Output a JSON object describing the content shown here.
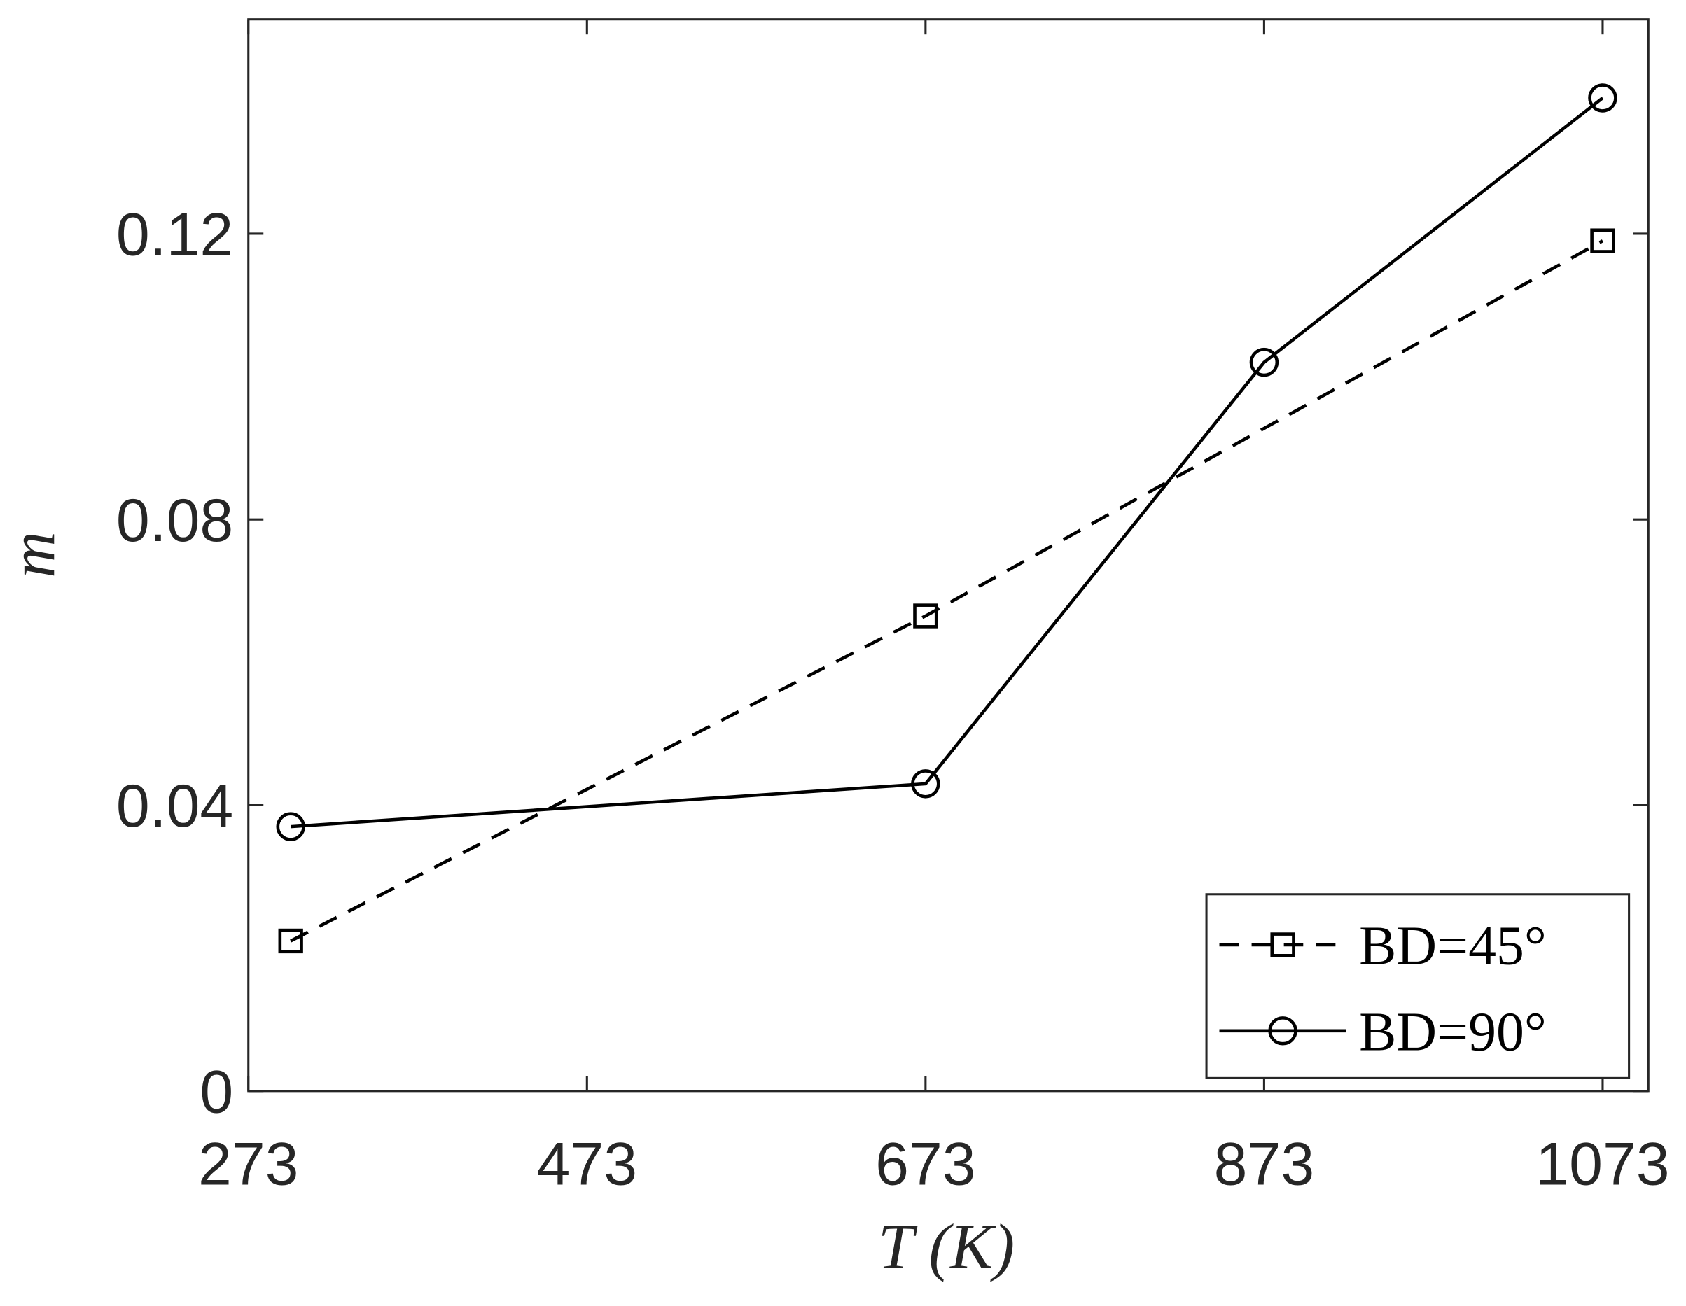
{
  "chart_data": {
    "type": "line",
    "x_label": "T (K)",
    "y_label": "m",
    "xlim": [
      273,
      1100
    ],
    "xticks": [
      273,
      473,
      673,
      873,
      1073
    ],
    "ylim": [
      0,
      0.15
    ],
    "yticks": [
      0,
      0.04,
      0.08,
      0.12
    ],
    "legend_position": "lower right",
    "series": [
      {
        "name": "BD=45°",
        "color": "#000000",
        "dash": true,
        "marker": "square",
        "x": [
          298,
          673,
          1073
        ],
        "values": [
          0.021,
          0.0665,
          0.119
        ]
      },
      {
        "name": "BD=90°",
        "color": "#000000",
        "dash": false,
        "marker": "circle",
        "x": [
          298,
          673,
          873,
          1073
        ],
        "values": [
          0.037,
          0.043,
          0.102,
          0.139
        ]
      }
    ]
  }
}
